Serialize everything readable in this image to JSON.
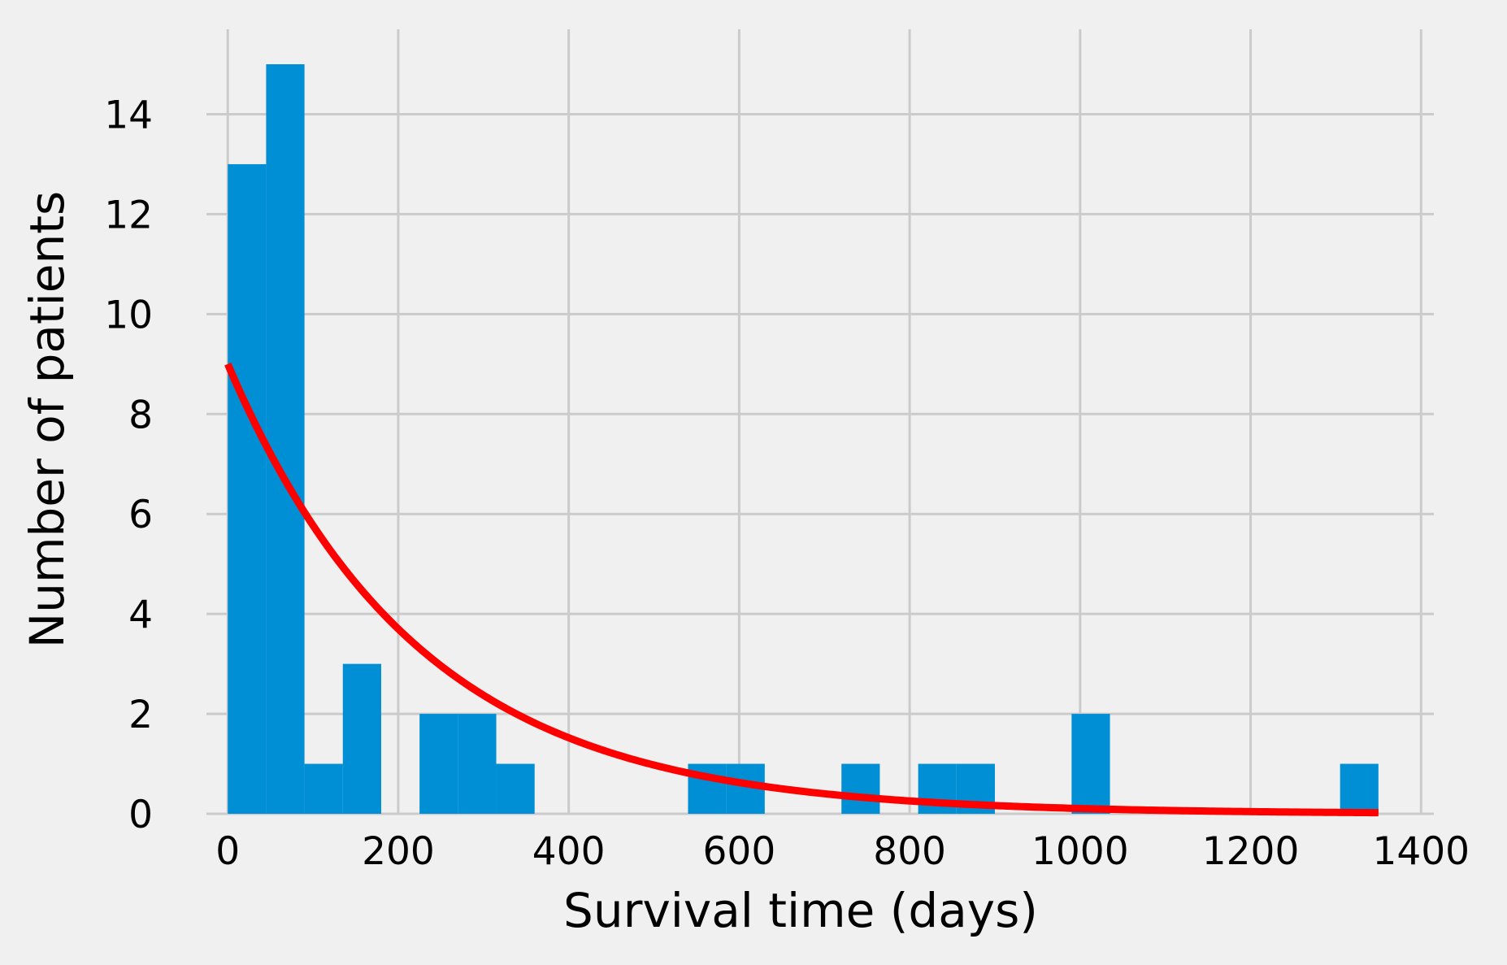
{
  "chart_data": {
    "type": "bar",
    "title": "",
    "xlabel": "Survival time (days)",
    "ylabel": "Number of patients",
    "xlim": [
      -25,
      1415
    ],
    "ylim": [
      0,
      15.7
    ],
    "grid": true,
    "x_ticks": [
      0,
      200,
      400,
      600,
      800,
      1000,
      1200,
      1400
    ],
    "y_ticks": [
      0,
      2,
      4,
      6,
      8,
      10,
      12,
      14
    ],
    "x_tick_labels": [
      "0",
      "200",
      "400",
      "600",
      "800",
      "1000",
      "1200",
      "1400"
    ],
    "y_tick_labels": [
      "0",
      "2",
      "4",
      "6",
      "8",
      "10",
      "12",
      "14"
    ],
    "histogram": {
      "bin_edges": [
        0,
        45,
        90,
        135,
        180,
        225,
        270,
        315,
        360,
        405,
        450,
        495,
        540,
        585,
        630,
        675,
        720,
        765,
        810,
        855,
        900,
        945,
        990,
        1035,
        1080,
        1125,
        1170,
        1215,
        1260,
        1305,
        1350
      ],
      "counts": [
        13,
        15,
        1,
        3,
        0,
        2,
        2,
        1,
        0,
        0,
        0,
        0,
        1,
        1,
        0,
        0,
        1,
        0,
        1,
        1,
        0,
        0,
        2,
        0,
        0,
        0,
        0,
        0,
        0,
        1
      ],
      "color": "#008fd5"
    },
    "fit_curve": {
      "type": "exponential",
      "amplitude": 9,
      "decay_days": 225,
      "x_range": [
        0,
        1350
      ],
      "color": "#ff0000"
    }
  },
  "colors": {
    "background": "#f0f0f0",
    "grid": "#cbcbcb",
    "bar": "#008fd5",
    "curve": "#ff0000"
  }
}
